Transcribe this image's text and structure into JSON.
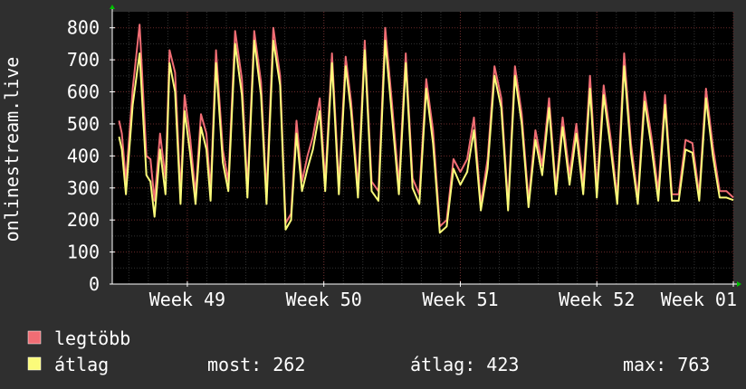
{
  "chart_data": {
    "type": "line",
    "title": "",
    "ylabel": "onlinestream.live",
    "xlabel": "",
    "ylim": [
      0,
      850
    ],
    "xlim": [
      48.45,
      53.0
    ],
    "yticks": [
      0,
      100,
      200,
      300,
      400,
      500,
      600,
      700,
      800
    ],
    "x_ticks": [
      {
        "label": "Week 49",
        "x": 49
      },
      {
        "label": "Week 50",
        "x": 50
      },
      {
        "label": "Week 51",
        "x": 51
      },
      {
        "label": "Week 52",
        "x": 52
      },
      {
        "label": "Week 01",
        "x": 53
      }
    ],
    "grid": true,
    "colors": {
      "background": "#2f2f2f",
      "plot_background": "#000000",
      "grid_minor": "#333333",
      "grid_major": "#6a2a2a",
      "axis": "#ffffff",
      "arrow": "#00c000",
      "max_series": "#f06d74",
      "avg_series": "#fbfb7a",
      "text": "#ffffff"
    },
    "series": [
      {
        "name": "legtöbb",
        "color": "#f06d74",
        "x": [
          48.5,
          48.52,
          48.55,
          48.6,
          48.65,
          48.7,
          48.73,
          48.76,
          48.8,
          48.84,
          48.87,
          48.91,
          48.95,
          48.98,
          49.02,
          49.06,
          49.1,
          49.14,
          49.17,
          49.21,
          49.26,
          49.3,
          49.35,
          49.4,
          49.44,
          49.49,
          49.54,
          49.58,
          49.63,
          49.68,
          49.72,
          49.76,
          49.8,
          49.84,
          49.88,
          49.92,
          49.97,
          50.01,
          50.06,
          50.11,
          50.16,
          50.2,
          50.25,
          50.3,
          50.35,
          50.4,
          50.45,
          50.5,
          50.55,
          50.6,
          50.65,
          50.7,
          50.75,
          50.8,
          50.85,
          50.9,
          50.95,
          51.0,
          51.05,
          51.1,
          51.15,
          51.2,
          51.25,
          51.3,
          51.35,
          51.4,
          51.45,
          51.5,
          51.55,
          51.6,
          51.65,
          51.7,
          51.75,
          51.8,
          51.85,
          51.9,
          51.95,
          52.0,
          52.05,
          52.1,
          52.15,
          52.2,
          52.25,
          52.3,
          52.35,
          52.4,
          52.45,
          52.5,
          52.55,
          52.6,
          52.65,
          52.7,
          52.75,
          52.8,
          52.85,
          52.9,
          52.95,
          53.0
        ],
        "values": [
          510,
          470,
          320,
          610,
          810,
          400,
          390,
          260,
          470,
          330,
          730,
          660,
          280,
          590,
          460,
          280,
          530,
          470,
          290,
          730,
          420,
          320,
          790,
          640,
          300,
          790,
          630,
          280,
          800,
          650,
          190,
          220,
          510,
          320,
          400,
          460,
          580,
          320,
          720,
          310,
          710,
          570,
          300,
          760,
          320,
          290,
          800,
          560,
          310,
          720,
          330,
          280,
          640,
          480,
          180,
          200,
          390,
          350,
          390,
          520,
          250,
          390,
          680,
          580,
          250,
          680,
          530,
          260,
          480,
          370,
          580,
          300,
          520,
          340,
          500,
          310,
          650,
          300,
          620,
          460,
          270,
          720,
          440,
          270,
          600,
          460,
          290,
          590,
          280,
          280,
          450,
          440,
          280,
          610,
          430,
          290,
          290,
          270
        ]
      },
      {
        "name": "átlag",
        "color": "#fbfb7a",
        "x": [
          48.5,
          48.52,
          48.55,
          48.6,
          48.65,
          48.7,
          48.73,
          48.76,
          48.8,
          48.84,
          48.87,
          48.91,
          48.95,
          48.98,
          49.02,
          49.06,
          49.1,
          49.14,
          49.17,
          49.21,
          49.26,
          49.3,
          49.35,
          49.4,
          49.44,
          49.49,
          49.54,
          49.58,
          49.63,
          49.68,
          49.72,
          49.76,
          49.8,
          49.84,
          49.88,
          49.92,
          49.97,
          50.01,
          50.06,
          50.11,
          50.16,
          50.2,
          50.25,
          50.3,
          50.35,
          50.4,
          50.45,
          50.5,
          50.55,
          50.6,
          50.65,
          50.7,
          50.75,
          50.8,
          50.85,
          50.9,
          50.95,
          51.0,
          51.05,
          51.1,
          51.15,
          51.2,
          51.25,
          51.3,
          51.35,
          51.4,
          51.45,
          51.5,
          51.55,
          51.6,
          51.65,
          51.7,
          51.75,
          51.8,
          51.85,
          51.9,
          51.95,
          52.0,
          52.05,
          52.1,
          52.15,
          52.2,
          52.25,
          52.3,
          52.35,
          52.4,
          52.45,
          52.5,
          52.55,
          52.6,
          52.65,
          52.7,
          52.75,
          52.8,
          52.85,
          52.9,
          52.95,
          53.0
        ],
        "values": [
          460,
          420,
          280,
          560,
          720,
          340,
          320,
          210,
          420,
          280,
          690,
          600,
          250,
          540,
          410,
          250,
          490,
          420,
          260,
          690,
          380,
          290,
          750,
          590,
          270,
          760,
          590,
          250,
          760,
          620,
          170,
          200,
          470,
          290,
          360,
          420,
          540,
          290,
          690,
          280,
          680,
          540,
          270,
          730,
          290,
          260,
          760,
          520,
          280,
          690,
          300,
          250,
          610,
          440,
          160,
          180,
          360,
          310,
          350,
          480,
          230,
          360,
          650,
          550,
          230,
          650,
          500,
          240,
          450,
          340,
          550,
          280,
          490,
          310,
          470,
          280,
          610,
          270,
          590,
          430,
          250,
          680,
          410,
          250,
          570,
          430,
          260,
          560,
          260,
          260,
          420,
          410,
          260,
          580,
          400,
          270,
          270,
          262
        ]
      }
    ],
    "legend": {
      "placement": "bottom-left",
      "items": [
        {
          "name": "legtöbb",
          "color": "#f06d74"
        },
        {
          "name": "átlag",
          "color": "#fbfb7a"
        }
      ]
    },
    "stats": {
      "current": "most: 262",
      "average": "átlag: 423",
      "maximum": "max: 763"
    }
  }
}
